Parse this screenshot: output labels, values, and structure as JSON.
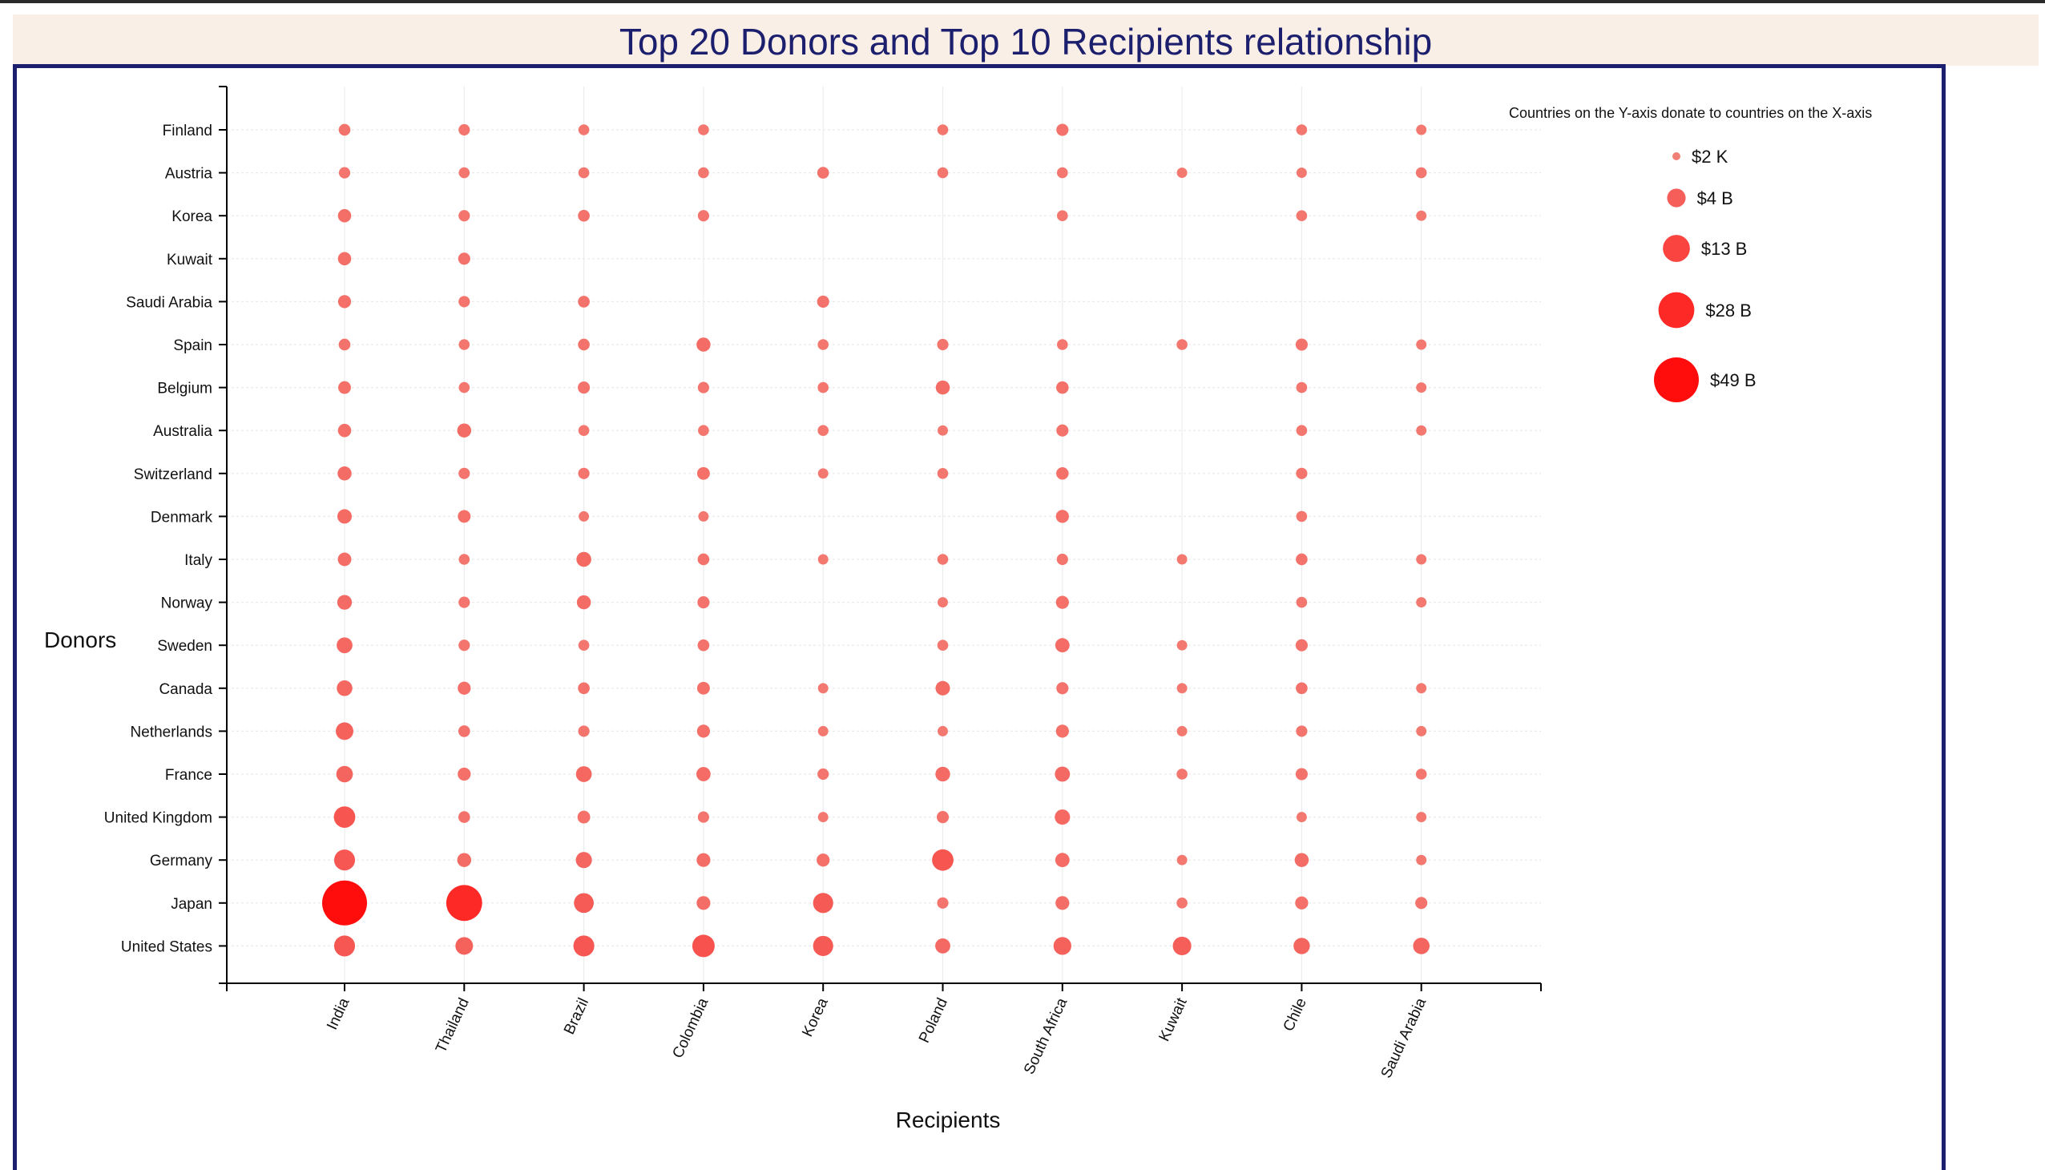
{
  "page": {
    "title": "Top 20 Donors and Top 10 Recipients relationship"
  },
  "chart_data": {
    "type": "scatter",
    "title": "Top 20 Donors and Top 10 Recipients relationship",
    "xlabel": "Recipients",
    "ylabel": "Donors",
    "recipients": [
      "India",
      "Thailand",
      "Brazil",
      "Colombia",
      "Korea",
      "Poland",
      "South Africa",
      "Kuwait",
      "Chile",
      "Saudi Arabia"
    ],
    "donors": [
      "Finland",
      "Austria",
      "Korea",
      "Kuwait",
      "Saudi Arabia",
      "Spain",
      "Belgium",
      "Australia",
      "Switzerland",
      "Denmark",
      "Italy",
      "Norway",
      "Sweden",
      "Canada",
      "Netherlands",
      "France",
      "United Kingdom",
      "Germany",
      "Japan",
      "United States"
    ],
    "size_unit": "billion USD",
    "bubbles": [
      {
        "donor": "Finland",
        "values": [
          0.5,
          0.4,
          0.3,
          0.3,
          null,
          0.3,
          0.6,
          null,
          0.3,
          0.2
        ]
      },
      {
        "donor": "Austria",
        "values": [
          0.4,
          0.3,
          0.3,
          0.3,
          0.5,
          0.3,
          0.3,
          0.2,
          0.2,
          0.3
        ]
      },
      {
        "donor": "Korea",
        "values": [
          1.0,
          0.4,
          0.5,
          0.4,
          null,
          null,
          0.3,
          null,
          0.3,
          0.2
        ]
      },
      {
        "donor": "Kuwait",
        "values": [
          1.0,
          0.6,
          null,
          null,
          null,
          null,
          null,
          null,
          null,
          null
        ]
      },
      {
        "donor": "Saudi Arabia",
        "values": [
          0.9,
          0.4,
          0.5,
          null,
          0.6,
          null,
          null,
          null,
          null,
          null
        ]
      },
      {
        "donor": "Spain",
        "values": [
          0.5,
          0.3,
          0.5,
          1.3,
          0.3,
          0.4,
          0.3,
          0.3,
          0.6,
          0.2
        ]
      },
      {
        "donor": "Belgium",
        "values": [
          0.8,
          0.3,
          0.6,
          0.4,
          0.3,
          1.3,
          0.7,
          null,
          0.3,
          0.2
        ]
      },
      {
        "donor": "Australia",
        "values": [
          1.0,
          1.3,
          0.3,
          0.3,
          0.3,
          0.2,
          0.6,
          null,
          0.3,
          0.2
        ]
      },
      {
        "donor": "Switzerland",
        "values": [
          1.3,
          0.4,
          0.4,
          0.8,
          0.2,
          0.3,
          0.7,
          null,
          0.4,
          null
        ]
      },
      {
        "donor": "Denmark",
        "values": [
          1.5,
          0.8,
          0.2,
          0.2,
          null,
          null,
          0.9,
          null,
          0.3,
          null
        ]
      },
      {
        "donor": "Italy",
        "values": [
          1.1,
          0.3,
          1.7,
          0.5,
          0.2,
          0.3,
          0.4,
          0.2,
          0.5,
          0.2
        ]
      },
      {
        "donor": "Norway",
        "values": [
          1.6,
          0.4,
          1.3,
          0.6,
          null,
          0.2,
          0.9,
          null,
          0.3,
          0.2
        ]
      },
      {
        "donor": "Sweden",
        "values": [
          2.2,
          0.4,
          0.3,
          0.5,
          null,
          0.3,
          1.4,
          0.2,
          0.6,
          null
        ]
      },
      {
        "donor": "Canada",
        "values": [
          2.1,
          0.9,
          0.5,
          0.8,
          0.2,
          1.5,
          0.6,
          0.2,
          0.5,
          0.2
        ]
      },
      {
        "donor": "Netherlands",
        "values": [
          3.3,
          0.5,
          0.4,
          0.9,
          0.2,
          0.2,
          0.9,
          0.2,
          0.4,
          0.2
        ]
      },
      {
        "donor": "France",
        "values": [
          2.6,
          0.9,
          2.2,
          1.4,
          0.4,
          1.6,
          1.8,
          0.3,
          0.6,
          0.3
        ]
      },
      {
        "donor": "United Kingdom",
        "values": [
          6.5,
          0.5,
          0.8,
          0.4,
          0.2,
          0.6,
          1.9,
          null,
          0.2,
          0.2
        ]
      },
      {
        "donor": "Germany",
        "values": [
          6.0,
          1.3,
          2.4,
          1.2,
          0.9,
          6.5,
          1.4,
          0.2,
          1.3,
          0.2
        ]
      },
      {
        "donor": "Japan",
        "values": [
          49.0,
          28.0,
          5.0,
          1.2,
          5.3,
          0.4,
          1.2,
          0.3,
          0.9,
          0.6
        ]
      },
      {
        "donor": "United States",
        "values": [
          6.0,
          3.3,
          6.0,
          7.5,
          5.3,
          1.8,
          3.5,
          4.0,
          2.5,
          2.6
        ]
      }
    ],
    "legend": {
      "title": "Countries on the Y-axis donate to countries on the X-axis",
      "entries": [
        {
          "label": "$2 K",
          "value": 2e-06
        },
        {
          "label": "$4 B",
          "value": 4
        },
        {
          "label": "$13 B",
          "value": 13
        },
        {
          "label": "$28 B",
          "value": 28
        },
        {
          "label": "$49 B",
          "value": 49
        }
      ],
      "position": "top-right"
    },
    "grid": true,
    "color_min": "#f27f77",
    "color_max": "#ff0d0d"
  }
}
